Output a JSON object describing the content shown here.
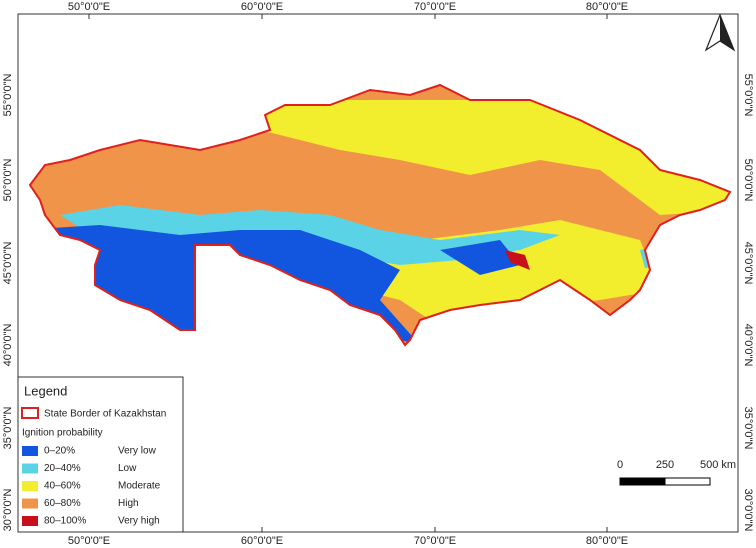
{
  "map": {
    "longitude_labels": [
      "50°0'0\"E",
      "60°0'0\"E",
      "70°0'0\"E",
      "80°0'0\"E"
    ],
    "latitude_labels": [
      "55°0'0\"N",
      "50°0'0\"N",
      "45°0'0\"N",
      "40°0'0\"N",
      "35°0'0\"N",
      "30°0'0\"N"
    ],
    "legend": {
      "title": "Legend",
      "border_label": "State Border of Kazakhstan",
      "group_title": "Ignition probability",
      "classes": [
        {
          "range": "0–20%",
          "label": "Very low",
          "color": "#1256e0"
        },
        {
          "range": "20–40%",
          "label": "Low",
          "color": "#5ad3e6"
        },
        {
          "range": "40–60%",
          "label": "Moderate",
          "color": "#f2ee2e"
        },
        {
          "range": "60–80%",
          "label": "High",
          "color": "#f0944a"
        },
        {
          "range": "80–100%",
          "label": "Very high",
          "color": "#c8101c"
        }
      ]
    },
    "scale_bar": {
      "labels": [
        "0",
        "250",
        "500 km"
      ]
    }
  }
}
